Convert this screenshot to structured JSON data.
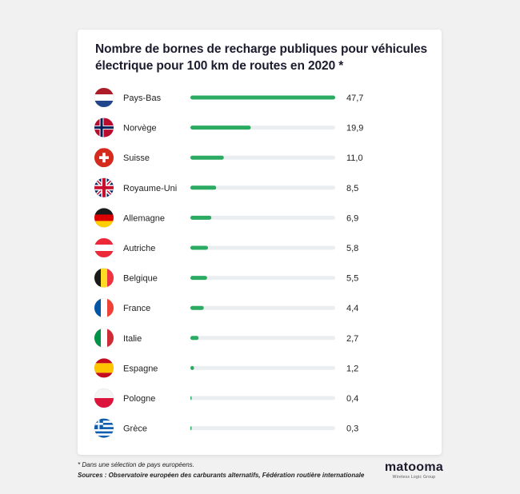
{
  "chart_data": {
    "type": "bar",
    "title": "Nombre de bornes de recharge publiques pour véhicules électrique pour 100 km de routes en 2020 *",
    "categories": [
      "Pays-Bas",
      "Norvège",
      "Suisse",
      "Royaume-Uni",
      "Allemagne",
      "Autriche",
      "Belgique",
      "France",
      "Italie",
      "Espagne",
      "Pologne",
      "Grèce"
    ],
    "values": [
      47.7,
      19.9,
      11.0,
      8.5,
      6.9,
      5.8,
      5.5,
      4.4,
      2.7,
      1.2,
      0.4,
      0.3
    ],
    "value_labels": [
      "47,7",
      "19,9",
      "11,0",
      "8,5",
      "6,9",
      "5,8",
      "5,5",
      "4,4",
      "2,7",
      "1,2",
      "0,4",
      "0,3"
    ],
    "flags": [
      "netherlands-flag",
      "norway-flag",
      "switzerland-flag",
      "uk-flag",
      "germany-flag",
      "austria-flag",
      "belgium-flag",
      "france-flag",
      "italy-flag",
      "spain-flag",
      "poland-flag",
      "greece-flag"
    ],
    "xlim": [
      0,
      47.7
    ],
    "bar_color": "#2bab62",
    "track_color": "#ebeef0"
  },
  "footnote": "* Dans une sélection de pays européens.",
  "sources": "Sources : Observatoire européen des carburants alternatifs, Fédération routière internationale",
  "logo": {
    "name": "matooma",
    "tagline": "Wireless Logic Group"
  }
}
